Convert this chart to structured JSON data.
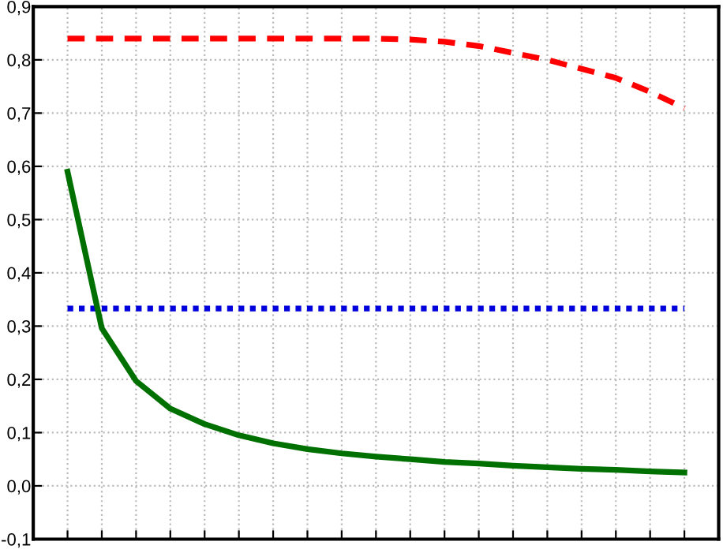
{
  "chart_data": {
    "type": "line",
    "categories": [
      null,
      null,
      null,
      null,
      null,
      null,
      null,
      null,
      null,
      null,
      null,
      null,
      null,
      null,
      null,
      null,
      null,
      null,
      null
    ],
    "series": [
      {
        "color": "#ff0000",
        "line_style": "dashed",
        "values": [
          0.84,
          0.84,
          0.84,
          0.84,
          0.84,
          0.84,
          0.84,
          0.84,
          0.84,
          0.84,
          0.838,
          0.834,
          0.826,
          0.813,
          0.8,
          0.783,
          0.766,
          0.74,
          0.709
        ]
      },
      {
        "color": "#0000dd",
        "line_style": "dotted",
        "values": [
          0.333,
          0.333,
          0.333,
          0.333,
          0.333,
          0.333,
          0.333,
          0.333,
          0.333,
          0.333,
          0.333,
          0.333,
          0.333,
          0.333,
          0.333,
          0.333,
          0.333,
          0.333,
          0.333
        ]
      },
      {
        "color": "#007000",
        "line_style": "solid",
        "values": [
          0.59,
          0.296,
          0.197,
          0.145,
          0.116,
          0.095,
          0.08,
          0.069,
          0.061,
          0.055,
          0.05,
          0.045,
          0.042,
          0.038,
          0.035,
          0.032,
          0.03,
          0.027,
          0.025
        ]
      }
    ],
    "ylim": [
      -0.1,
      0.9
    ],
    "yticks": [
      {
        "value": -0.1,
        "label": "-0,1"
      },
      {
        "value": 0.0,
        "label": "0,0"
      },
      {
        "value": 0.1,
        "label": "0,1"
      },
      {
        "value": 0.2,
        "label": "0,2"
      },
      {
        "value": 0.3,
        "label": "0,3"
      },
      {
        "value": 0.4,
        "label": "0,4"
      },
      {
        "value": 0.5,
        "label": "0,5"
      },
      {
        "value": 0.6,
        "label": "0,6"
      },
      {
        "value": 0.7,
        "label": "0,7"
      },
      {
        "value": 0.8,
        "label": "0,8"
      },
      {
        "value": 0.9,
        "label": "0,9"
      }
    ],
    "grid": true,
    "tick_labels": "y",
    "marker": "none",
    "legend": false
  }
}
